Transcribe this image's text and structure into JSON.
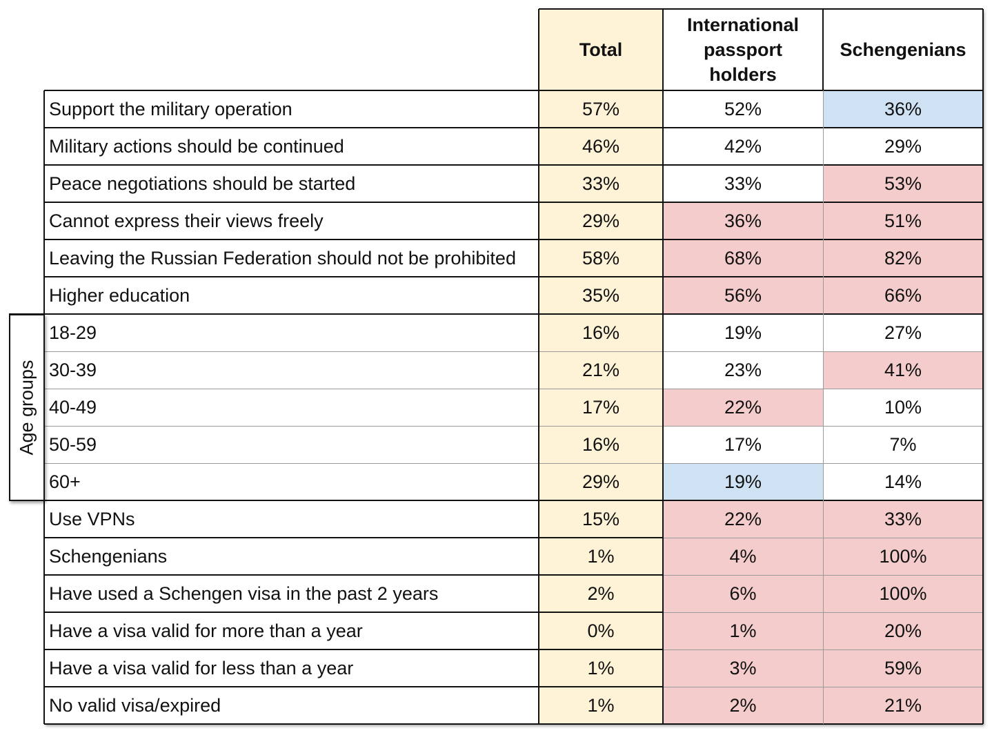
{
  "chart_data": {
    "type": "table",
    "columns": [
      "Total",
      "International passport holders",
      "Schengenians"
    ],
    "group_label": "Age groups",
    "colors": {
      "total": "#fef3d6",
      "high": "#f4cccc",
      "low": "#cfe2f3",
      "plain": "#ffffff"
    },
    "rows": [
      {
        "label": "Support the military operation",
        "values": [
          "57%",
          "52%",
          "36%"
        ],
        "hl": [
          "",
          "",
          "low"
        ]
      },
      {
        "label": "Military actions should be continued",
        "values": [
          "46%",
          "42%",
          "29%"
        ],
        "hl": [
          "",
          "",
          ""
        ]
      },
      {
        "label": "Peace negotiations should be started",
        "values": [
          "33%",
          "33%",
          "53%"
        ],
        "hl": [
          "",
          "",
          "high"
        ]
      },
      {
        "label": "Cannot express their views freely",
        "values": [
          "29%",
          "36%",
          "51%"
        ],
        "hl": [
          "",
          "high",
          "high"
        ]
      },
      {
        "label": "Leaving the Russian Federation should not be prohibited",
        "values": [
          "58%",
          "68%",
          "82%"
        ],
        "hl": [
          "",
          "high",
          "high"
        ]
      },
      {
        "label": "Higher education",
        "values": [
          "35%",
          "56%",
          "66%"
        ],
        "hl": [
          "",
          "high",
          "high"
        ]
      },
      {
        "label": "18-29",
        "values": [
          "16%",
          "19%",
          "27%"
        ],
        "hl": [
          "",
          "",
          ""
        ]
      },
      {
        "label": "30-39",
        "values": [
          "21%",
          "23%",
          "41%"
        ],
        "hl": [
          "",
          "",
          "high"
        ]
      },
      {
        "label": "40-49",
        "values": [
          "17%",
          "22%",
          "10%"
        ],
        "hl": [
          "",
          "high",
          ""
        ]
      },
      {
        "label": "50-59",
        "values": [
          "16%",
          "17%",
          "7%"
        ],
        "hl": [
          "",
          "",
          ""
        ]
      },
      {
        "label": "60+",
        "values": [
          "29%",
          "19%",
          "14%"
        ],
        "hl": [
          "",
          "low",
          ""
        ]
      },
      {
        "label": "Use VPNs",
        "values": [
          "15%",
          "22%",
          "33%"
        ],
        "hl": [
          "",
          "high",
          "high"
        ]
      },
      {
        "label": "Schengenians",
        "values": [
          "1%",
          "4%",
          "100%"
        ],
        "hl": [
          "",
          "high",
          "high"
        ]
      },
      {
        "label": "Have used a Schengen visa in the past 2 years",
        "values": [
          "2%",
          "6%",
          "100%"
        ],
        "hl": [
          "",
          "high",
          "high"
        ]
      },
      {
        "label": "Have a visa valid for more than a year",
        "values": [
          "0%",
          "1%",
          "20%"
        ],
        "hl": [
          "",
          "high",
          "high"
        ]
      },
      {
        "label": "Have a visa valid for less than a year",
        "values": [
          "1%",
          "3%",
          "59%"
        ],
        "hl": [
          "",
          "high",
          "high"
        ]
      },
      {
        "label": "No valid visa/expired",
        "values": [
          "1%",
          "2%",
          "21%"
        ],
        "hl": [
          "",
          "high",
          "high"
        ]
      }
    ]
  }
}
